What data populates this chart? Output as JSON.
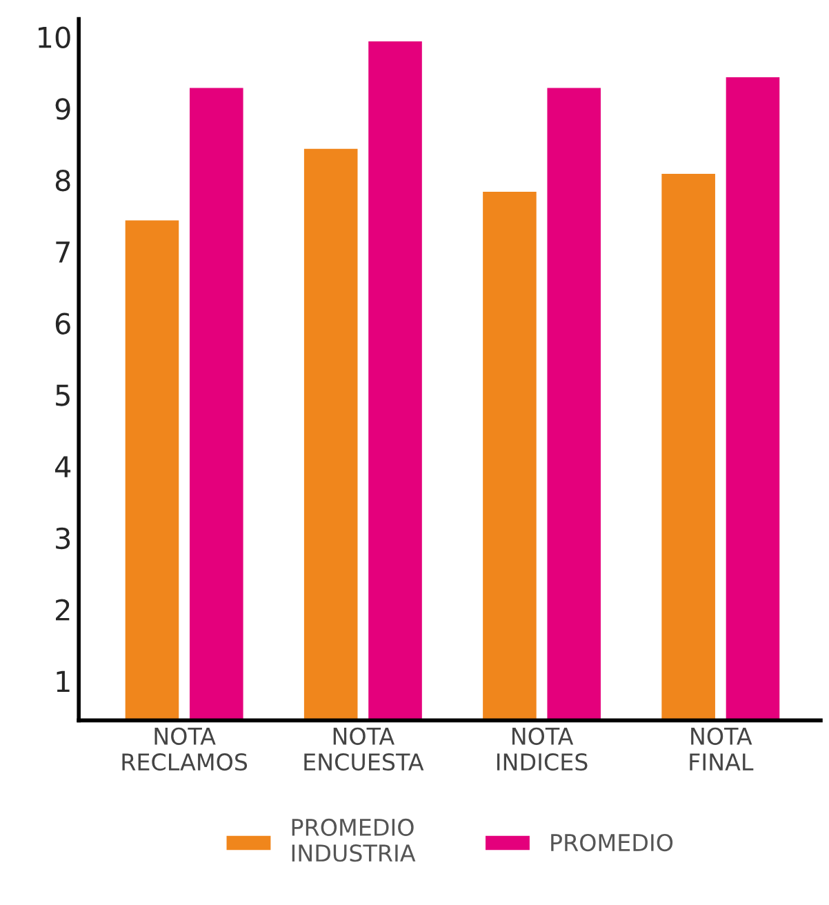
{
  "chart_data": {
    "type": "bar",
    "categories": [
      "NOTA\nRECLAMOS",
      "NOTA\nENCUESTA",
      "NOTA\nINDICES",
      "NOTA\nFINAL"
    ],
    "series": [
      {
        "name": "PROMEDIO\nINDUSTRIA",
        "color": "#f0861c",
        "values": [
          7.45,
          8.45,
          7.85,
          8.1
        ]
      },
      {
        "name": "PROMEDIO",
        "color": "#e4007c",
        "values": [
          9.3,
          9.95,
          9.3,
          9.45
        ]
      }
    ],
    "ylim": [
      0.45,
      10.25
    ],
    "yticks": [
      1,
      2,
      3,
      4,
      5,
      6,
      7,
      8,
      9,
      10
    ],
    "grid": false,
    "legend": "bottom"
  }
}
